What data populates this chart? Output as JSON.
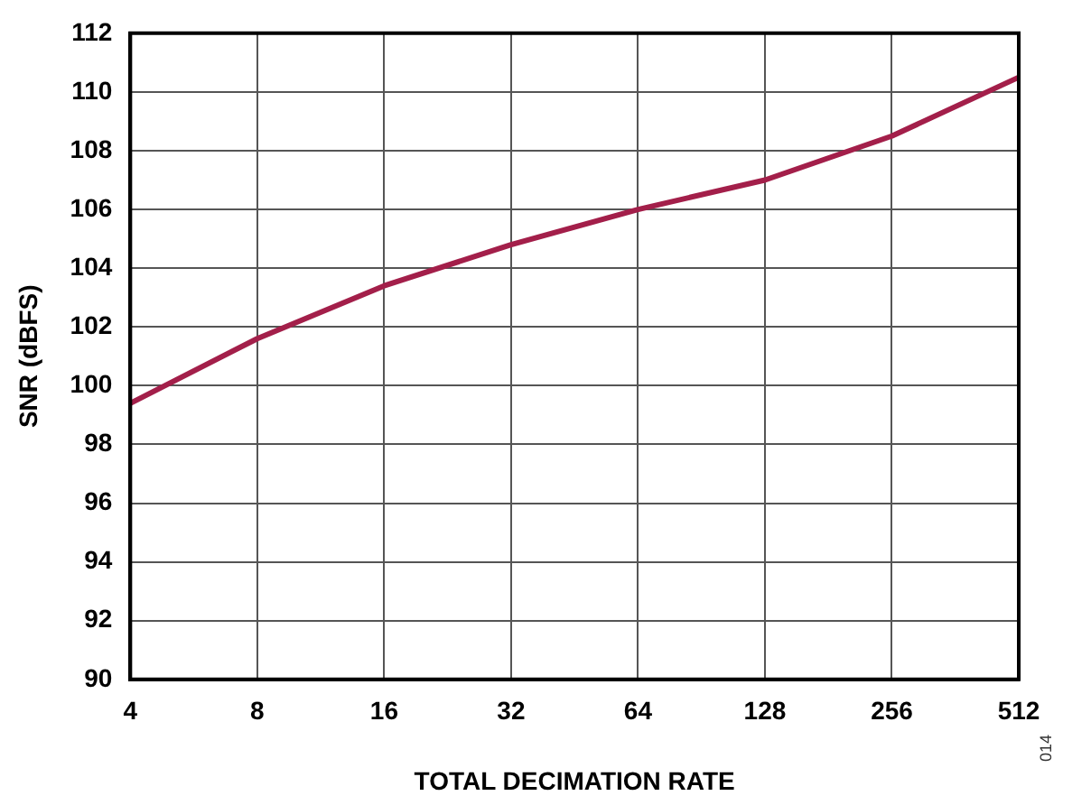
{
  "chart_data": {
    "type": "line",
    "xlabel": "TOTAL DECIMATION RATE",
    "ylabel": "SNR (dBFS)",
    "categories": [
      "4",
      "8",
      "16",
      "32",
      "64",
      "128",
      "256",
      "512"
    ],
    "series": [
      {
        "color": "#a31f4a",
        "values": [
          99.4,
          101.6,
          103.4,
          104.8,
          106.0,
          107.0,
          108.5,
          110.5
        ]
      }
    ],
    "ylim": [
      90,
      112
    ],
    "yticks": [
      90,
      92,
      94,
      96,
      98,
      100,
      102,
      104,
      106,
      108,
      110,
      112
    ],
    "grid": true,
    "legend": false,
    "marker": "none",
    "line_style": "solid",
    "annotations": [
      "014"
    ]
  }
}
